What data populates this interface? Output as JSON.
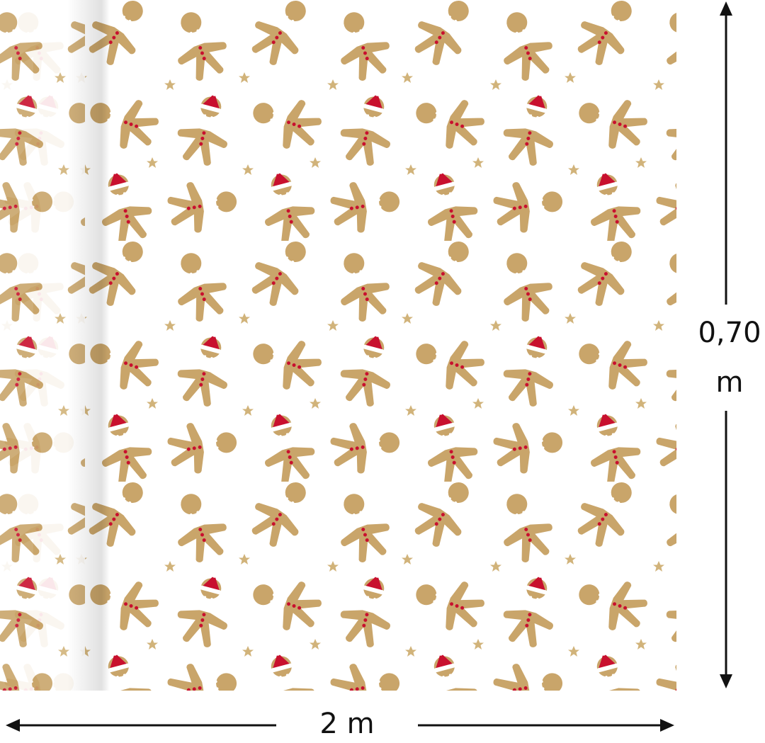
{
  "dimensions": {
    "height": {
      "value": "0,70",
      "unit": "m"
    },
    "width": "2 m"
  }
}
